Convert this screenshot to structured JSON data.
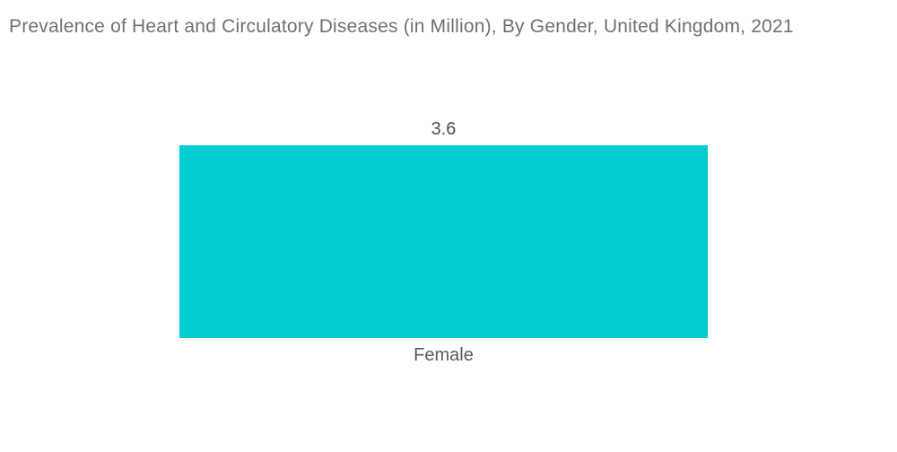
{
  "title": "Prevalence of Heart and Circulatory Diseases (in Million), By Gender, United Kingdom, 2021",
  "chart_data": {
    "type": "bar",
    "title": "Prevalence of Heart and Circulatory Diseases (in Million), By Gender, United Kingdom, 2021",
    "categories": [
      "Female"
    ],
    "values": [
      3.6
    ],
    "value_labels": [
      "3.6"
    ],
    "xlabel": "",
    "ylabel": "",
    "ylim": [
      0,
      3.6
    ],
    "grid": false,
    "legend": false,
    "axes_visible": false,
    "orientation": "vertical",
    "bar_color": "#00ccd2"
  },
  "colors": {
    "bar": "#00ccd2",
    "background": "#ffffff",
    "title_text": "#6f7072",
    "value_text": "#4d4e50",
    "category_text": "#595a5c"
  }
}
